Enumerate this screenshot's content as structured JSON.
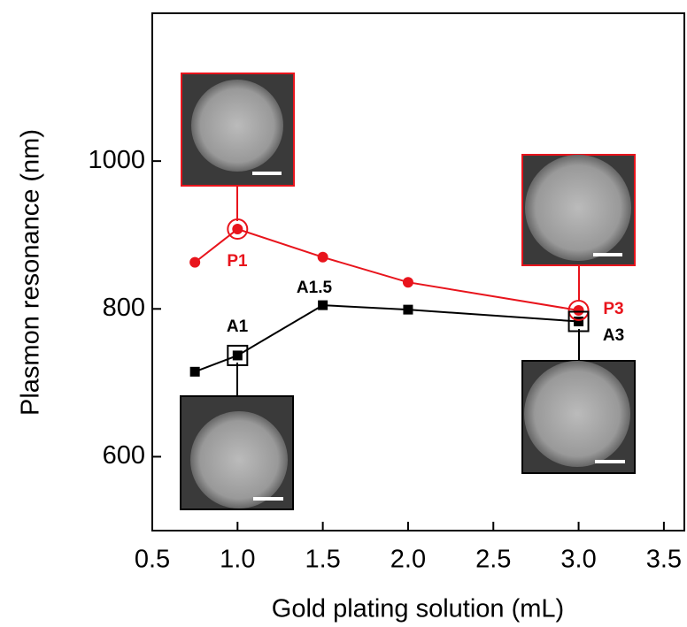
{
  "chart_data": {
    "type": "line",
    "xlabel": "Gold plating solution (mL)",
    "ylabel": "Plasmon resonance (nm)",
    "xlim": [
      0.5,
      3.62
    ],
    "ylim": [
      500,
      1200
    ],
    "xticks": [
      {
        "value": 0.5,
        "label": "0.5"
      },
      {
        "value": 1,
        "label": "1.0"
      },
      {
        "value": 1.5,
        "label": "1.5"
      },
      {
        "value": 2,
        "label": "2.0"
      },
      {
        "value": 2.5,
        "label": "2.5"
      },
      {
        "value": 3,
        "label": "3.0"
      },
      {
        "value": 3.5,
        "label": "3.5"
      }
    ],
    "yticks": [
      600,
      800,
      1000
    ],
    "x": [
      0.75,
      1,
      1.5,
      2,
      3
    ],
    "series": [
      {
        "color": "#e8141c",
        "marker": "circle",
        "values": [
          863,
          908,
          870,
          836,
          798
        ]
      },
      {
        "color": "#000000",
        "marker": "square",
        "values": [
          715,
          737,
          805,
          799,
          783
        ]
      }
    ],
    "annotations": [
      {
        "text": "P1",
        "color": "#e8141c"
      },
      {
        "text": "P3",
        "color": "#e8141c"
      },
      {
        "text": "A1",
        "color": "#000000"
      },
      {
        "text": "A1.5",
        "color": "#000000"
      },
      {
        "text": "A3",
        "color": "#000000"
      }
    ]
  }
}
